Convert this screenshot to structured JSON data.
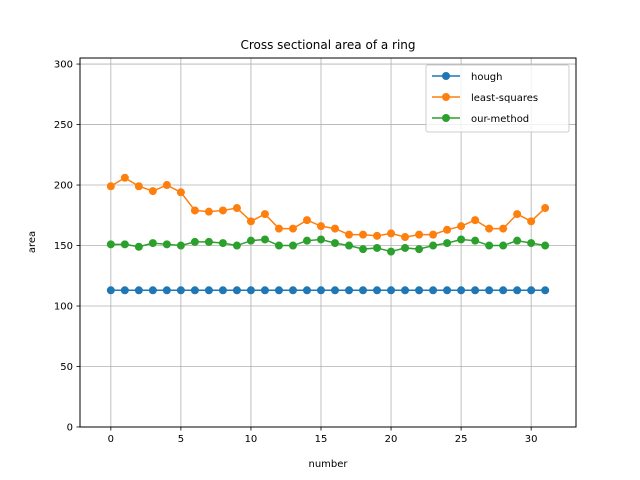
{
  "chart_data": {
    "type": "line",
    "title": "Cross sectional area of a ring",
    "xlabel": "number",
    "ylabel": "area",
    "xlim": [
      -2.2,
      33.2
    ],
    "ylim": [
      0,
      305
    ],
    "xticks": [
      0,
      5,
      10,
      15,
      20,
      25,
      30
    ],
    "yticks": [
      0,
      50,
      100,
      150,
      200,
      250,
      300
    ],
    "grid": true,
    "legend_position": "top-right",
    "x": [
      0,
      1,
      2,
      3,
      4,
      5,
      6,
      7,
      8,
      9,
      10,
      11,
      12,
      13,
      14,
      15,
      16,
      17,
      18,
      19,
      20,
      21,
      22,
      23,
      24,
      25,
      26,
      27,
      28,
      29,
      30,
      31
    ],
    "series": [
      {
        "name": "hough",
        "color": "#1f77b4",
        "values": [
          113,
          113,
          113,
          113,
          113,
          113,
          113,
          113,
          113,
          113,
          113,
          113,
          113,
          113,
          113,
          113,
          113,
          113,
          113,
          113,
          113,
          113,
          113,
          113,
          113,
          113,
          113,
          113,
          113,
          113,
          113,
          113
        ]
      },
      {
        "name": "least-squares",
        "color": "#ff7f0e",
        "values": [
          199,
          206,
          199,
          195,
          200,
          194,
          179,
          178,
          179,
          181,
          170,
          176,
          164,
          164,
          171,
          166,
          164,
          159,
          159,
          158,
          160,
          157,
          159,
          159,
          163,
          166,
          171,
          164,
          164,
          176,
          170,
          181
        ]
      },
      {
        "name": "our-method",
        "color": "#2ca02c",
        "values": [
          151,
          151,
          149,
          152,
          151,
          150,
          153,
          153,
          152,
          150,
          154,
          155,
          150,
          150,
          154,
          155,
          152,
          150,
          147,
          148,
          145,
          148,
          147,
          150,
          152,
          155,
          154,
          150,
          150,
          154,
          152,
          150
        ]
      }
    ]
  }
}
